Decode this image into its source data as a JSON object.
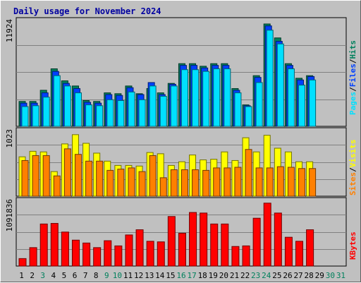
{
  "title": "Daily usage for November 2024",
  "colors": {
    "hits": "#00805c",
    "files": "#0040ff",
    "pages": "#00e0ff",
    "visits": "#ffff00",
    "sites": "#ff8000",
    "kbytes": "#ff0000",
    "weekend_label": "#00805c",
    "weekday_label": "#000000",
    "plot_bg": "#c0c0c0"
  },
  "chart_data": [
    {
      "type": "bar",
      "panel": "hits-files-pages",
      "title": "Daily usage for November 2024",
      "right_label": [
        "Pages",
        "Files",
        "Hits"
      ],
      "ylabel": "11924",
      "ylim": [
        0,
        11924
      ],
      "grid": true,
      "categories": [
        "1",
        "2",
        "3",
        "4",
        "5",
        "6",
        "7",
        "8",
        "9",
        "10",
        "11",
        "12",
        "13",
        "14",
        "15",
        "16",
        "17",
        "18",
        "19",
        "20",
        "21",
        "22",
        "23",
        "24",
        "25",
        "26",
        "27",
        "28",
        "29",
        "30",
        "31"
      ],
      "weekend_days": [
        "3",
        "9",
        "10",
        "16",
        "17",
        "23",
        "24",
        "30",
        "31"
      ],
      "series": [
        {
          "name": "Hits",
          "values": [
            2900,
            2900,
            4200,
            6700,
            5300,
            4700,
            3000,
            2900,
            3900,
            3800,
            4700,
            3800,
            4400,
            3900,
            5000,
            7300,
            7300,
            7000,
            7300,
            7300,
            4400,
            2500,
            5900,
            11924,
            10300,
            7300,
            5600,
            5900,
            0,
            0,
            0
          ]
        },
        {
          "name": "Files",
          "values": [
            2700,
            2700,
            3900,
            6400,
            5000,
            4400,
            2800,
            2700,
            3700,
            3600,
            4500,
            3700,
            5100,
            3700,
            4900,
            7100,
            7100,
            6800,
            7100,
            7100,
            4200,
            2400,
            5700,
            11700,
            9900,
            7100,
            5400,
            5800,
            0,
            0,
            0
          ]
        },
        {
          "name": "Pages",
          "values": [
            2300,
            2400,
            3400,
            5900,
            4700,
            3900,
            2500,
            2400,
            3100,
            3000,
            4000,
            3100,
            4700,
            3500,
            4700,
            6600,
            6600,
            6400,
            6700,
            6700,
            3900,
            2300,
            5100,
            11200,
            9600,
            6700,
            4800,
            5400,
            0,
            0,
            0
          ]
        }
      ]
    },
    {
      "type": "bar",
      "panel": "visits-sites",
      "right_label": [
        "Sites",
        "Visits"
      ],
      "ylabel": "1023",
      "ylim": [
        0,
        1023
      ],
      "grid": true,
      "categories": [
        "1",
        "2",
        "3",
        "4",
        "5",
        "6",
        "7",
        "8",
        "9",
        "10",
        "11",
        "12",
        "13",
        "14",
        "15",
        "16",
        "17",
        "18",
        "19",
        "20",
        "21",
        "22",
        "23",
        "24",
        "25",
        "26",
        "27",
        "28",
        "29",
        "30",
        "31"
      ],
      "series": [
        {
          "name": "Visits",
          "values": [
            640,
            730,
            720,
            400,
            850,
            1000,
            860,
            700,
            570,
            500,
            500,
            490,
            710,
            690,
            500,
            560,
            670,
            590,
            600,
            720,
            580,
            950,
            720,
            990,
            780,
            720,
            560,
            560,
            0,
            0,
            0
          ]
        },
        {
          "name": "Sites",
          "values": [
            580,
            660,
            660,
            330,
            770,
            680,
            570,
            570,
            420,
            440,
            460,
            400,
            660,
            300,
            430,
            430,
            430,
            420,
            460,
            460,
            470,
            760,
            460,
            460,
            480,
            470,
            450,
            450,
            0,
            0,
            0
          ]
        }
      ]
    },
    {
      "type": "bar",
      "panel": "kbytes",
      "right_label": [
        "KBytes"
      ],
      "ylabel": "1091836",
      "ylim": [
        0,
        1091836
      ],
      "grid": true,
      "categories": [
        "1",
        "2",
        "3",
        "4",
        "5",
        "6",
        "7",
        "8",
        "9",
        "10",
        "11",
        "12",
        "13",
        "14",
        "15",
        "16",
        "17",
        "18",
        "19",
        "20",
        "21",
        "22",
        "23",
        "24",
        "25",
        "26",
        "27",
        "28",
        "29",
        "30",
        "31"
      ],
      "series": [
        {
          "name": "KBytes",
          "values": [
            130000,
            320000,
            730000,
            740000,
            590000,
            450000,
            400000,
            320000,
            440000,
            350000,
            540000,
            630000,
            430000,
            420000,
            860000,
            570000,
            930000,
            920000,
            730000,
            730000,
            340000,
            350000,
            830000,
            1091836,
            920000,
            500000,
            430000,
            630000,
            0,
            0,
            0
          ]
        }
      ]
    }
  ]
}
